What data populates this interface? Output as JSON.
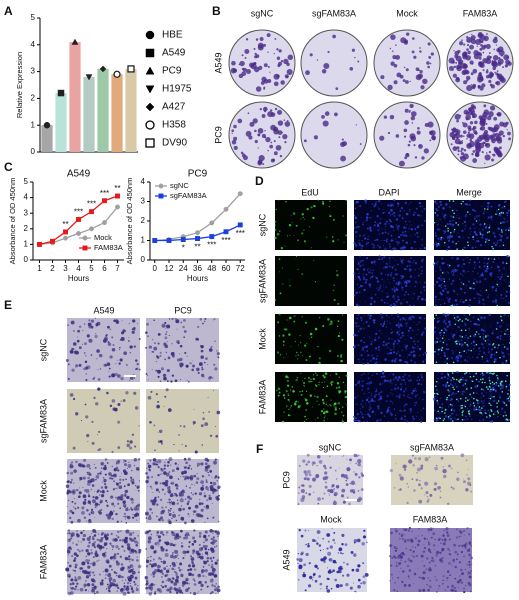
{
  "panel_labels": [
    "A",
    "B",
    "C",
    "D",
    "E",
    "F"
  ],
  "chart_data": [
    {
      "type": "bar",
      "ylabel": "Relative Expression",
      "categories": [
        "HBE",
        "A549",
        "PC9",
        "H1975",
        "A427",
        "H358",
        "DV90"
      ],
      "values": [
        1.0,
        2.2,
        4.1,
        2.8,
        3.1,
        2.9,
        3.1
      ],
      "colors": [
        "#a6a6a6",
        "#b9e2d8",
        "#e9a3a3",
        "#b3cbc3",
        "#9dc9a9",
        "#e2aa7c",
        "#d9c9a7"
      ],
      "markers": [
        "circle",
        "square",
        "triangle",
        "triangle-down",
        "diamond",
        "open-circle",
        "open-square"
      ],
      "ylim": [
        0,
        5
      ],
      "yticks": [
        0,
        1,
        2,
        3,
        4,
        5
      ]
    },
    {
      "type": "line",
      "title": "A549",
      "xlabel": "Hours",
      "ylabel": "Absorbance of OD 450nm",
      "x": [
        1,
        2,
        3,
        4,
        5,
        6,
        7
      ],
      "xlim": [
        0.5,
        7.5
      ],
      "xticks": [
        1,
        2,
        3,
        4,
        5,
        6,
        7
      ],
      "ylim": [
        0,
        5
      ],
      "yticks": [
        0,
        1,
        2,
        3,
        4,
        5
      ],
      "legend": "lower right",
      "series": [
        {
          "name": "Mock",
          "color": "#a0a0a0",
          "marker": "circle",
          "values": [
            1,
            1.1,
            1.4,
            1.7,
            2.0,
            2.4,
            3.4
          ]
        },
        {
          "name": "FAM83A",
          "color": "#e8191c",
          "marker": "square",
          "values": [
            1,
            1.2,
            1.8,
            2.6,
            3.1,
            3.8,
            4.1
          ]
        }
      ],
      "annotations": [
        {
          "x": 3,
          "text": "**"
        },
        {
          "x": 4,
          "text": "***"
        },
        {
          "x": 5,
          "text": "***"
        },
        {
          "x": 6,
          "text": "***"
        },
        {
          "x": 7,
          "text": "**"
        }
      ]
    },
    {
      "type": "line",
      "title": "PC9",
      "xlabel": "Hours",
      "ylabel": "Absorbance of OD 450nm",
      "x": [
        0,
        12,
        24,
        36,
        48,
        60,
        72
      ],
      "xlim": [
        -4,
        76
      ],
      "xticks": [
        0,
        12,
        24,
        36,
        48,
        60,
        72
      ],
      "ylim": [
        0,
        4
      ],
      "yticks": [
        0,
        1,
        2,
        3,
        4
      ],
      "legend": "upper left",
      "series": [
        {
          "name": "sgNC",
          "color": "#a0a0a0",
          "marker": "circle",
          "values": [
            1,
            1.05,
            1.2,
            1.4,
            1.9,
            2.6,
            3.4
          ]
        },
        {
          "name": "sgFAM83A",
          "color": "#1a3fe0",
          "marker": "square",
          "values": [
            1,
            1.0,
            1.05,
            1.1,
            1.2,
            1.45,
            1.8
          ]
        }
      ],
      "annotations": [
        {
          "x": 24,
          "text": "*"
        },
        {
          "x": 36,
          "text": "**"
        },
        {
          "x": 48,
          "text": "***"
        },
        {
          "x": 60,
          "text": "***"
        },
        {
          "x": 72,
          "text": "***"
        }
      ]
    }
  ],
  "panel_b": {
    "columns": [
      "sgNC",
      "sgFAM83A",
      "Mock",
      "FAM83A"
    ],
    "rows": [
      "A549",
      "PC9"
    ]
  },
  "panel_d": {
    "columns": [
      "EdU",
      "DAPI",
      "Merge"
    ],
    "rows": [
      "sgNC",
      "sgFAM83A",
      "Mock",
      "FAM83A"
    ]
  },
  "panel_e": {
    "columns": [
      "A549",
      "PC9"
    ],
    "rows": [
      "sgNC",
      "sgFAM83A",
      "Mock",
      "FAM83A"
    ]
  },
  "panel_f": {
    "top_columns": [
      "sgNC",
      "sgFAM83A"
    ],
    "top_row": "PC9",
    "bottom_columns": [
      "Mock",
      "FAM83A"
    ],
    "bottom_row": "A549"
  }
}
